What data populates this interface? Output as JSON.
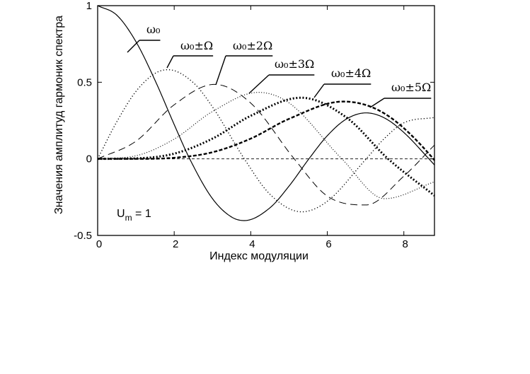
{
  "chart_data": {
    "type": "line",
    "xlabel": "Индекс модуляции",
    "ylabel": "Значения амплитуд гармоник спектра",
    "xlim": [
      0,
      8.8
    ],
    "ylim": [
      -0.5,
      1
    ],
    "x_ticks": [
      "0",
      "2",
      "4",
      "6",
      "8"
    ],
    "y_ticks": [
      "-0.5",
      "0",
      "0.5",
      "1"
    ],
    "annotation": {
      "main": "U",
      "sub": "m",
      "rest": " = 1"
    },
    "series": [
      {
        "name": "ω₀",
        "order": 0,
        "x": [
          0,
          0.5,
          1,
          1.5,
          2,
          2.405,
          3,
          3.5,
          3.832,
          4.5,
          5,
          5.52,
          6,
          6.5,
          7.016,
          7.5,
          8,
          8.654,
          8.8
        ],
        "values": [
          1,
          0.938,
          0.765,
          0.512,
          0.224,
          0,
          -0.26,
          -0.38,
          -0.403,
          -0.32,
          -0.178,
          0,
          0.151,
          0.26,
          0.3,
          0.266,
          0.172,
          0,
          -0.04
        ]
      },
      {
        "name": "ω₀±Ω",
        "order": 1,
        "x": [
          0,
          0.5,
          1,
          1.5,
          1.841,
          2.5,
          3,
          3.832,
          4.5,
          5.331,
          6,
          7.016,
          7.5,
          8,
          8.8
        ],
        "values": [
          0,
          0.242,
          0.44,
          0.558,
          0.582,
          0.497,
          0.339,
          0,
          -0.231,
          -0.346,
          -0.277,
          0,
          0.135,
          0.235,
          0.27
        ]
      },
      {
        "name": "ω₀±2Ω",
        "order": 2,
        "x": [
          0,
          1,
          2,
          3.054,
          4,
          5.136,
          6,
          7.013,
          8,
          8.8
        ],
        "values": [
          0,
          0.115,
          0.353,
          0.486,
          0.364,
          0,
          -0.243,
          -0.301,
          -0.113,
          0.09
        ]
      },
      {
        "name": "ω₀±3Ω",
        "order": 3,
        "x": [
          0,
          1,
          2,
          3,
          4.201,
          5,
          6.38,
          7.5,
          8.8
        ],
        "values": [
          0,
          0.02,
          0.129,
          0.309,
          0.434,
          0.365,
          0,
          -0.26,
          -0.15
        ]
      },
      {
        "name": "ω₀±4Ω",
        "order": 4,
        "x": [
          0,
          1,
          2,
          3,
          4,
          5.318,
          6.5,
          7.588,
          8.8
        ],
        "values": [
          0,
          0.003,
          0.034,
          0.132,
          0.281,
          0.399,
          0.27,
          0,
          -0.24
        ]
      },
      {
        "name": "ω₀±5Ω",
        "order": 5,
        "x": [
          0,
          1,
          2,
          3,
          4,
          5,
          6.416,
          7.5,
          8.771,
          8.8
        ],
        "values": [
          0,
          0,
          0.007,
          0.043,
          0.132,
          0.261,
          0.374,
          0.295,
          0,
          -0.01
        ]
      }
    ]
  }
}
